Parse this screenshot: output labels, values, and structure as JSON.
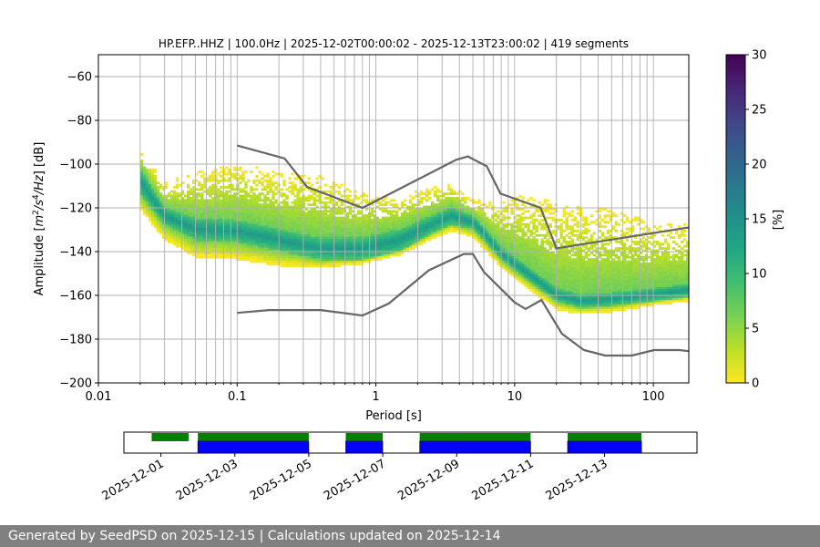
{
  "chart_data": [
    {
      "type": "heatmap",
      "title": "HP.EFP..HHZ | 100.0Hz | 2025-12-02T00:00:02 - 2025-12-13T23:00:02 | 419 segments",
      "xlabel": "Period [s]",
      "ylabel": "Amplitude [m2/s4/Hz] [dB]",
      "ylabel_parts": {
        "pre": "Amplitude [",
        "m": "m",
        "exp1": "2",
        "s": "/s",
        "exp2": "4",
        "post": "/Hz] [dB]"
      },
      "xscale": "log",
      "xlim": [
        0.01,
        180
      ],
      "ylim": [
        -200,
        -50
      ],
      "x_ticks": [
        0.01,
        0.1,
        1,
        10,
        100
      ],
      "x_tick_labels": [
        "0.01",
        "0.1",
        "1",
        "10",
        "100"
      ],
      "y_ticks": [
        -200,
        -180,
        -160,
        -140,
        -120,
        -100,
        -80,
        -60
      ],
      "y_tick_labels": [
        "−200",
        "−180",
        "−160",
        "−140",
        "−120",
        "−100",
        "−80",
        "−60"
      ],
      "grid": true,
      "colors": {
        "grid": "#b0b0b0",
        "noise_model": "#666666"
      },
      "density_ridge": {
        "period": [
          0.02,
          0.03,
          0.05,
          0.1,
          0.2,
          0.4,
          0.8,
          1.5,
          2.5,
          3.5,
          5,
          6,
          8,
          10,
          15,
          20,
          30,
          50,
          100,
          180
        ],
        "mode_db": [
          -108,
          -124,
          -130,
          -131,
          -135,
          -139,
          -139,
          -135,
          -128,
          -124,
          -127,
          -132,
          -141,
          -146,
          -154,
          -160,
          -163,
          -162,
          -160,
          -158
        ],
        "core_halfwidth_db": [
          6,
          4,
          5,
          5,
          5,
          5,
          5,
          5,
          4,
          4,
          3,
          3,
          3,
          3,
          3,
          3,
          3,
          3,
          3,
          3
        ],
        "spread_low_db": [
          12,
          10,
          12,
          12,
          11,
          8,
          6,
          6,
          6,
          6,
          6,
          6,
          6,
          6,
          6,
          6,
          5,
          5,
          4,
          4
        ],
        "spread_high_db": [
          14,
          14,
          25,
          30,
          30,
          32,
          25,
          20,
          16,
          14,
          10,
          14,
          22,
          30,
          38,
          40,
          42,
          40,
          32,
          30
        ]
      },
      "noise_models": [
        {
          "name": "high",
          "period": [
            0.1,
            0.22,
            0.32,
            0.8,
            3.8,
            4.6,
            6.3,
            7.9,
            15.4,
            20,
            354.8
          ],
          "db": [
            -91.5,
            -97.4,
            -110.5,
            -120,
            -98,
            -96.5,
            -101,
            -113.5,
            -120,
            -138.5,
            -126
          ]
        },
        {
          "name": "low",
          "period": [
            0.1,
            0.17,
            0.4,
            0.8,
            1.24,
            2.4,
            4.3,
            5,
            6,
            10,
            12,
            15.6,
            21.9,
            31.6,
            45,
            70,
            101,
            154,
            180
          ],
          "db": [
            -168,
            -166.7,
            -166.7,
            -169.2,
            -163.7,
            -148.6,
            -141.1,
            -141.1,
            -149.3,
            -163.2,
            -166.2,
            -162.1,
            -177.5,
            -185,
            -187.5,
            -187.5,
            -185,
            -185,
            -185.5
          ]
        }
      ]
    },
    {
      "type": "heatmap",
      "colorbar_label": "[%]",
      "clim": [
        0,
        30
      ],
      "ticks": [
        0,
        5,
        10,
        15,
        20,
        25,
        30
      ],
      "tick_labels": [
        "0",
        "5",
        "10",
        "15",
        "20",
        "25",
        "30"
      ],
      "colormap": [
        "#440154",
        "#482475",
        "#414487",
        "#355f8d",
        "#2a788e",
        "#21918c",
        "#22a884",
        "#44bf70",
        "#7ad151",
        "#bddf26",
        "#fde725"
      ]
    },
    {
      "type": "bar",
      "x_dates": [
        "2025-12-01",
        "2025-12-03",
        "2025-12-05",
        "2025-12-07",
        "2025-12-09",
        "2025-12-11",
        "2025-12-13"
      ],
      "xlim": [
        "2025-11-30T00:00",
        "2025-12-15T12:00"
      ],
      "colors": {
        "data": "#008000",
        "psd": "#0000ff"
      },
      "data_coverage": [
        [
          "2025-11-30T18:00",
          "2025-12-01T18:00"
        ],
        [
          "2025-12-02T00:00",
          "2025-12-05T00:00"
        ],
        [
          "2025-12-06T00:00",
          "2025-12-07T00:00"
        ],
        [
          "2025-12-08T00:00",
          "2025-12-11T00:00"
        ],
        [
          "2025-12-12T00:00",
          "2025-12-14T00:00"
        ]
      ],
      "psd_coverage": [
        [
          "2025-12-02T00:00",
          "2025-12-05T00:00"
        ],
        [
          "2025-12-06T00:00",
          "2025-12-07T00:00"
        ],
        [
          "2025-12-08T00:00",
          "2025-12-09T00:00"
        ],
        [
          "2025-12-09T00:00",
          "2025-12-11T00:00"
        ],
        [
          "2025-12-12T00:00",
          "2025-12-14T00:00"
        ]
      ]
    }
  ],
  "footer": {
    "text": "Generated by SeedPSD on 2025-12-15 | Calculations updated on 2025-12-14"
  }
}
